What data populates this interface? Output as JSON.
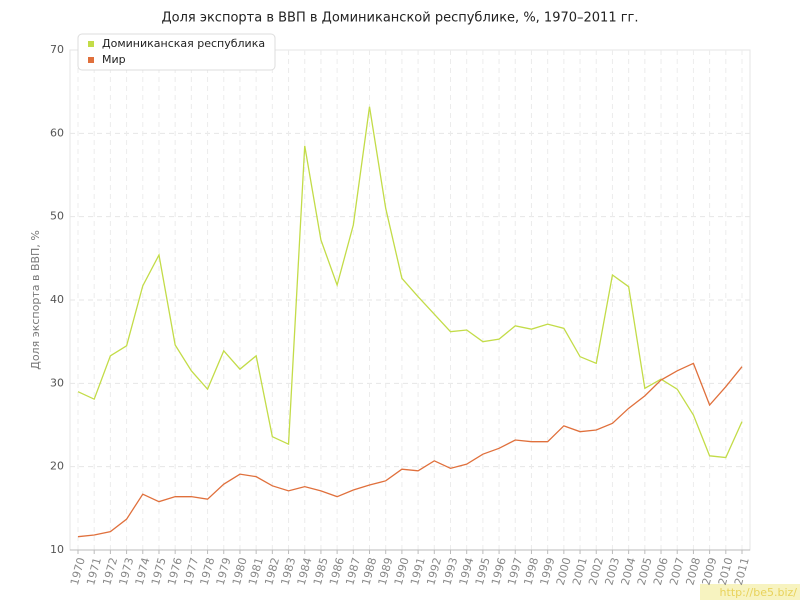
{
  "chart_data": {
    "type": "line",
    "title": "Доля экспорта в ВВП в Доминиканской республике, %, 1970–2011 гг.",
    "y_label": "Доля экспорта в ВВП, %",
    "watermark": "http://be5.biz/",
    "categories": [
      "1970",
      "1971",
      "1972",
      "1973",
      "1974",
      "1975",
      "1976",
      "1977",
      "1978",
      "1979",
      "1980",
      "1981",
      "1982",
      "1983",
      "1984",
      "1985",
      "1986",
      "1987",
      "1988",
      "1989",
      "1990",
      "1991",
      "1992",
      "1993",
      "1994",
      "1995",
      "1996",
      "1997",
      "1998",
      "1999",
      "2000",
      "2001",
      "2002",
      "2003",
      "2004",
      "2005",
      "2006",
      "2007",
      "2008",
      "2009",
      "2010",
      "2011"
    ],
    "series": [
      {
        "name": "Доминиканская республика",
        "color": "#c3dc48",
        "values": [
          29.0,
          28.1,
          33.3,
          34.5,
          41.7,
          45.4,
          34.6,
          31.5,
          29.3,
          33.9,
          31.7,
          33.3,
          23.6,
          22.7,
          58.5,
          47.2,
          41.8,
          49.0,
          63.2,
          51.0,
          42.6,
          40.4,
          38.3,
          36.2,
          36.4,
          35.0,
          35.3,
          36.9,
          36.5,
          37.1,
          36.6,
          33.2,
          32.4,
          43.0,
          41.6,
          29.4,
          30.5,
          29.3,
          26.2,
          21.3,
          21.1,
          25.4
        ]
      },
      {
        "name": "Мир",
        "color": "#e0703c",
        "values": [
          11.6,
          11.8,
          12.2,
          13.7,
          16.7,
          15.8,
          16.4,
          16.4,
          16.1,
          17.9,
          19.1,
          18.8,
          17.7,
          17.1,
          17.6,
          17.1,
          16.4,
          17.2,
          17.8,
          18.3,
          19.7,
          19.5,
          20.7,
          19.8,
          20.3,
          21.5,
          22.2,
          23.2,
          23.0,
          23.0,
          24.9,
          24.2,
          24.4,
          25.2,
          27.0,
          28.5,
          30.4,
          31.5,
          32.4,
          27.4,
          29.6,
          32.0
        ]
      }
    ],
    "ylim": [
      10,
      70
    ],
    "yticks": [
      10,
      20,
      30,
      40,
      50,
      60,
      70
    ],
    "grid": true,
    "legend": "top-left"
  }
}
